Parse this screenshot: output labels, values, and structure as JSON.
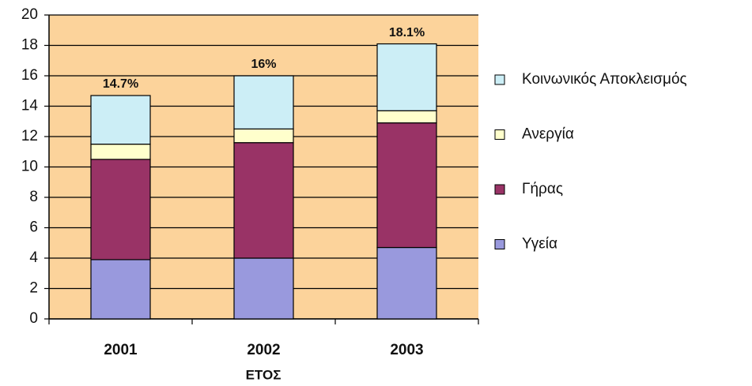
{
  "chart_data": {
    "type": "stacked_bar",
    "x_label": "ΕΤΟΣ",
    "categories": [
      "2001",
      "2002",
      "2003"
    ],
    "series": [
      {
        "name": "Υγεία",
        "color": "#9999dd",
        "values": [
          3.9,
          4.0,
          4.7
        ]
      },
      {
        "name": "Γήρας",
        "color": "#993366",
        "values": [
          6.6,
          7.6,
          8.2
        ]
      },
      {
        "name": "Ανεργία",
        "color": "#ffffcc",
        "values": [
          1.0,
          0.9,
          0.8
        ]
      },
      {
        "name": "Κοινωνικός Αποκλεισμός",
        "color": "#cceef6",
        "values": [
          3.2,
          3.5,
          4.4
        ]
      }
    ],
    "total_labels": [
      "14.7%",
      "16%",
      "18.1%"
    ],
    "ylim": [
      0,
      20
    ],
    "yticks": [
      0,
      2,
      4,
      6,
      8,
      10,
      12,
      14,
      16,
      18,
      20
    ],
    "grid": true,
    "legend": "right",
    "background": "#fcd39b",
    "label_color": "#b5532a"
  }
}
